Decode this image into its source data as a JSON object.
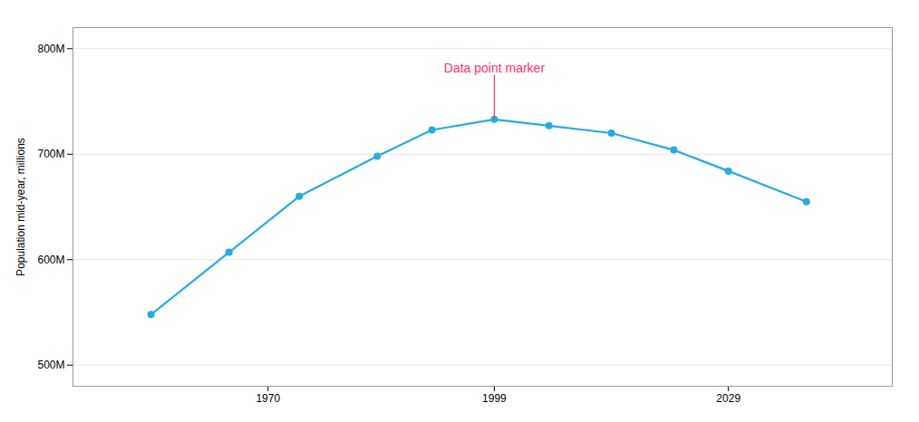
{
  "chart_data": {
    "type": "line",
    "x": [
      1955,
      1965,
      1974,
      1984,
      1991,
      1999,
      2006,
      2014,
      2022,
      2029,
      2039
    ],
    "values": [
      548,
      607,
      660,
      698,
      723,
      733,
      727,
      720,
      704,
      684,
      655
    ],
    "color": "#29ABE2",
    "marker": "circle",
    "y_label": "Population mid-year, millions",
    "xlim": [
      1945,
      2050
    ],
    "xticks": [
      1970,
      1999,
      2029
    ],
    "ylim": [
      480,
      820
    ],
    "yticks": [
      {
        "value": 500,
        "label": "500M"
      },
      {
        "value": 600,
        "label": "600M"
      },
      {
        "value": 700,
        "label": "700M"
      },
      {
        "value": 800,
        "label": "800M"
      }
    ],
    "grid": true,
    "annotations": [
      {
        "text": "Data point marker",
        "x": 1999,
        "y": 733,
        "text_x": 1999,
        "text_y": 775,
        "color": "#FF3366"
      }
    ]
  }
}
